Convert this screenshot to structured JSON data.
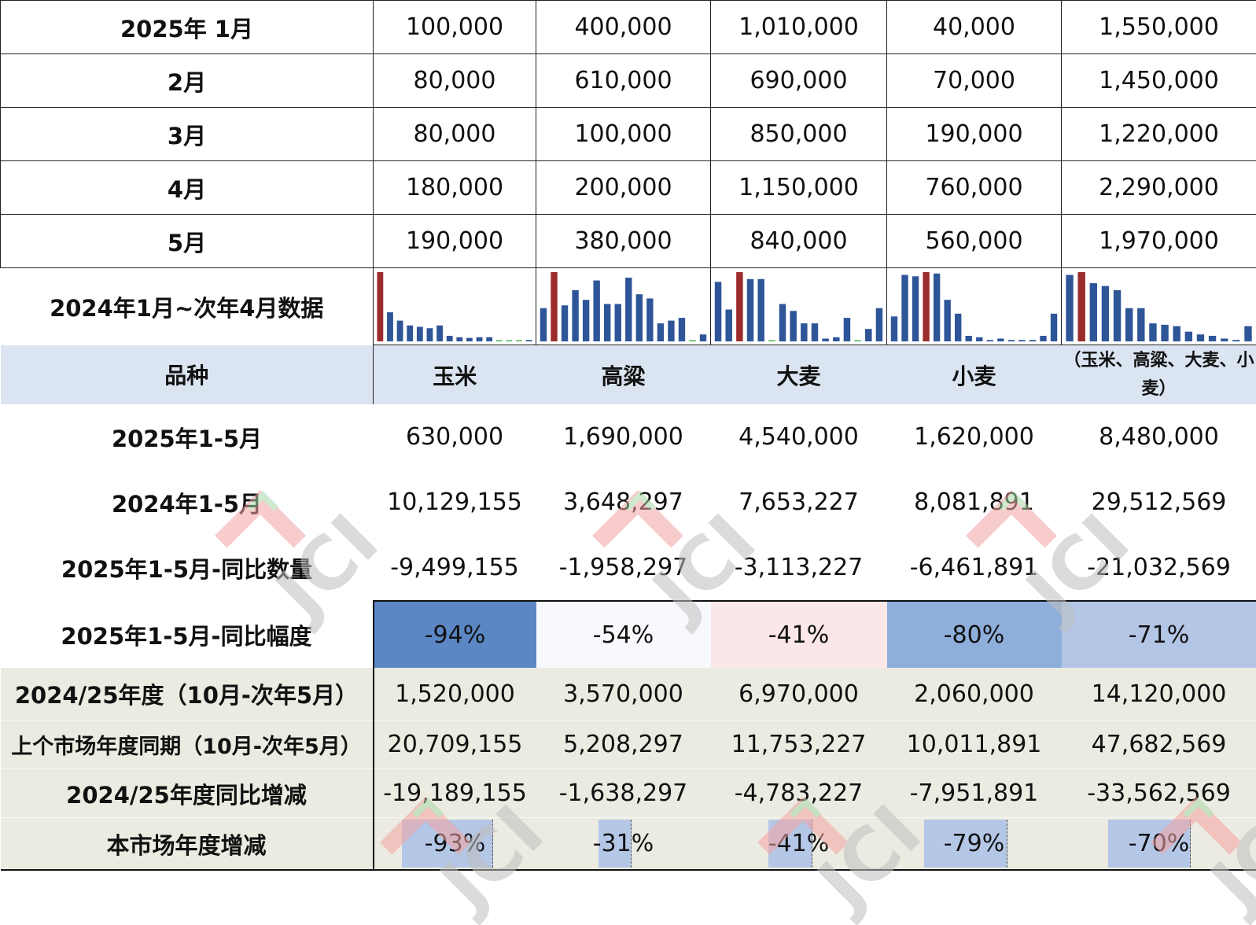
{
  "monthly_rows": [
    {
      "label": "2025年 1月",
      "values": [
        "100,000",
        "400,000",
        "1,010,000",
        "40,000",
        "1,550,000"
      ]
    },
    {
      "label": "2月",
      "values": [
        "80,000",
        "610,000",
        "690,000",
        "70,000",
        "1,450,000"
      ]
    },
    {
      "label": "3月",
      "values": [
        "80,000",
        "100,000",
        "850,000",
        "190,000",
        "1,220,000"
      ]
    },
    {
      "label": "4月",
      "values": [
        "180,000",
        "200,000",
        "1,150,000",
        "760,000",
        "2,290,000"
      ]
    },
    {
      "label": "5月",
      "values": [
        "190,000",
        "380,000",
        "840,000",
        "560,000",
        "1,970,000"
      ]
    }
  ],
  "sparkline_label": "2024年1月~次年4月数据",
  "chart_data": {
    "type": "bar",
    "note_colors": {
      "bar": "#2e5597",
      "highlight": "#9b2c2c",
      "zero": "#4caf50"
    },
    "series": [
      {
        "values": [
          100,
          42,
          30,
          23,
          21,
          19,
          23,
          8,
          6,
          5,
          6,
          6,
          0,
          0,
          0,
          2
        ],
        "highlight": 0
      },
      {
        "values": [
          48,
          100,
          52,
          74,
          60,
          88,
          54,
          54,
          92,
          68,
          62,
          26,
          30,
          34,
          0,
          10
        ],
        "highlight": 1
      },
      {
        "values": [
          86,
          46,
          100,
          90,
          90,
          0,
          54,
          44,
          26,
          26,
          4,
          6,
          34,
          0,
          18,
          48
        ],
        "highlight": 2
      },
      {
        "values": [
          36,
          96,
          94,
          100,
          98,
          60,
          40,
          8,
          6,
          2,
          4,
          2,
          2,
          2,
          8,
          40
        ],
        "highlight": 3
      },
      {
        "values": [
          96,
          100,
          84,
          80,
          74,
          48,
          48,
          26,
          24,
          22,
          14,
          10,
          8,
          4,
          2,
          22
        ],
        "highlight": 1
      }
    ]
  },
  "header": {
    "label": "品种",
    "columns": [
      "玉米",
      "高粱",
      "大麦",
      "小麦",
      "（玉米、高粱、大麦、小麦）"
    ]
  },
  "summary_rows": [
    {
      "label": "2025年1-5月",
      "values": [
        "630,000",
        "1,690,000",
        "4,540,000",
        "1,620,000",
        "8,480,000"
      ]
    },
    {
      "label": "2024年1-5月",
      "values": [
        "10,129,155",
        "3,648,297",
        "7,653,227",
        "8,081,891",
        "29,512,569"
      ]
    },
    {
      "label": "2025年1-5月-同比数量",
      "values": [
        "-9,499,155",
        "-1,958,297",
        "-3,113,227",
        "-6,461,891",
        "-21,032,569"
      ]
    }
  ],
  "pct_row": {
    "label": "2025年1-5月-同比幅度",
    "values": [
      "-94%",
      "-54%",
      "-41%",
      "-80%",
      "-71%"
    ],
    "colors": [
      "#5b87c5",
      "#f8f9fd",
      "#fbe6e8",
      "#8eaedb",
      "#b3c6e6"
    ]
  },
  "season_rows": [
    {
      "label": "2024/25年度（10月-次年5月）",
      "values": [
        "1,520,000",
        "3,570,000",
        "6,970,000",
        "2,060,000",
        "14,120,000"
      ]
    },
    {
      "label": "上个市场年度同期（10月-次年5月）",
      "values": [
        "20,709,155",
        "5,208,297",
        "11,753,227",
        "10,011,891",
        "47,682,569"
      ]
    },
    {
      "label": "2024/25年度同比增减",
      "values": [
        "-19,189,155",
        "-1,638,297",
        "-4,783,227",
        "-7,951,891",
        "-33,562,569"
      ]
    }
  ],
  "season_pct_row": {
    "label": "本市场年度增减",
    "values": [
      "-93%",
      "-31%",
      "-41%",
      "-79%",
      "-70%"
    ],
    "fraction": [
      0.93,
      0.31,
      0.41,
      0.79,
      0.7
    ]
  },
  "watermark": "JCI"
}
